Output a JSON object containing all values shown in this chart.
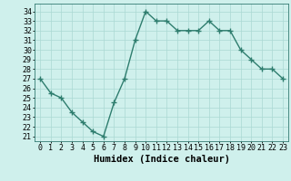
{
  "x": [
    0,
    1,
    2,
    3,
    4,
    5,
    6,
    7,
    8,
    9,
    10,
    11,
    12,
    13,
    14,
    15,
    16,
    17,
    18,
    19,
    20,
    21,
    22,
    23
  ],
  "y": [
    27,
    25.5,
    25,
    23.5,
    22.5,
    21.5,
    21,
    24.5,
    27,
    31,
    34,
    33,
    33,
    32,
    32,
    32,
    33,
    32,
    32,
    30,
    29,
    28,
    28,
    27
  ],
  "line_color": "#2e7d6e",
  "marker": "+",
  "bg_color": "#cff0ec",
  "grid_color": "#aad8d3",
  "xlabel": "Humidex (Indice chaleur)",
  "ylabel_ticks": [
    21,
    22,
    23,
    24,
    25,
    26,
    27,
    28,
    29,
    30,
    31,
    32,
    33,
    34
  ],
  "xlim": [
    -0.5,
    23.5
  ],
  "ylim": [
    20.5,
    34.8
  ],
  "tick_label_fontsize": 6.0,
  "xlabel_fontsize": 7.5,
  "line_width": 1.0,
  "marker_size": 4,
  "marker_edge_width": 1.0
}
